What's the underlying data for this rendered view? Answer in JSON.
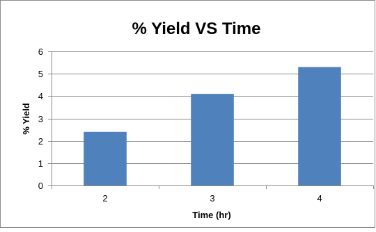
{
  "chart_data": {
    "type": "bar",
    "title": "% Yield VS Time",
    "xlabel": "Time (hr)",
    "ylabel": "% Yield",
    "categories": [
      "2",
      "3",
      "4"
    ],
    "values": [
      2.4,
      4.1,
      5.3
    ],
    "ylim": [
      0,
      6
    ],
    "yticks": [
      "0",
      "1",
      "2",
      "3",
      "4",
      "5",
      "6"
    ],
    "grid": true,
    "legend": "none",
    "bar_color": "#4f81bd"
  }
}
